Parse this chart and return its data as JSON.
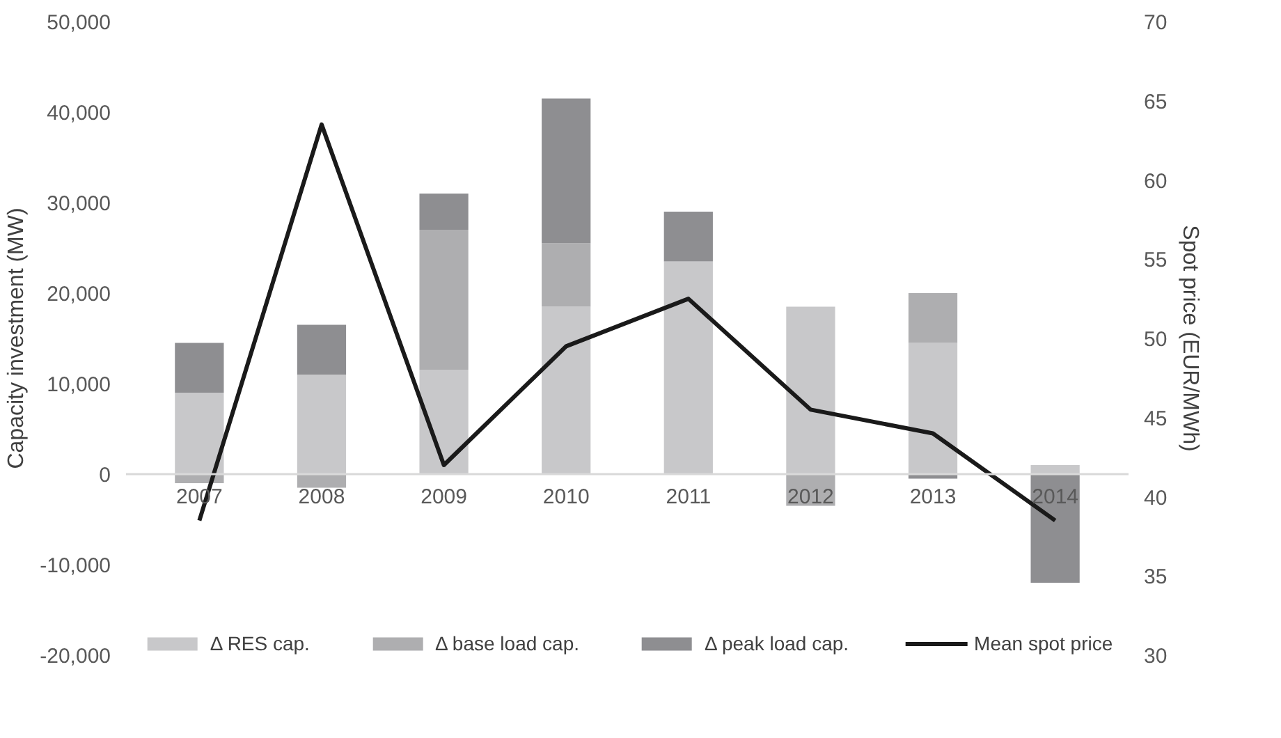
{
  "chart_data": {
    "type": "bar",
    "stacked": true,
    "categories": [
      "2007",
      "2008",
      "2009",
      "2010",
      "2011",
      "2012",
      "2013",
      "2014"
    ],
    "ylabel": "Capacity investment (MW)",
    "y2label": "Spot price (EUR/MWh)",
    "ylim": [
      -20000,
      50000
    ],
    "yticks": [
      {
        "value": -20000,
        "label": "-20,000"
      },
      {
        "value": -10000,
        "label": "-10,000"
      },
      {
        "value": 0,
        "label": "0"
      },
      {
        "value": 10000,
        "label": "10,000"
      },
      {
        "value": 20000,
        "label": "20,000"
      },
      {
        "value": 30000,
        "label": "30,000"
      },
      {
        "value": 40000,
        "label": "40,000"
      },
      {
        "value": 50000,
        "label": "50,000"
      }
    ],
    "y2lim": [
      30,
      70
    ],
    "y2ticks": [
      30,
      35,
      40,
      45,
      50,
      55,
      60,
      65,
      70
    ],
    "grid": false,
    "legend": "bottom",
    "series": [
      {
        "name": "Δ RES cap.",
        "color": "#c8c8ca",
        "values": [
          9000,
          11000,
          11500,
          18500,
          23500,
          18500,
          14500,
          1000
        ]
      },
      {
        "name": "Δ base load cap.",
        "color": "#aeaeb0",
        "values": [
          -1000,
          -1500,
          15500,
          7000,
          null,
          -3500,
          5500,
          null
        ]
      },
      {
        "name": "Δ peak load cap.",
        "color": "#8e8e91",
        "values": [
          5500,
          5500,
          4000,
          16000,
          5500,
          null,
          -500,
          -12000
        ]
      },
      {
        "name": "Mean spot price",
        "type": "line",
        "axis": "y2",
        "color": "#1a1a1a",
        "values": [
          38.5,
          63.5,
          42,
          49.5,
          52.5,
          45.5,
          44,
          38.5
        ]
      }
    ]
  }
}
